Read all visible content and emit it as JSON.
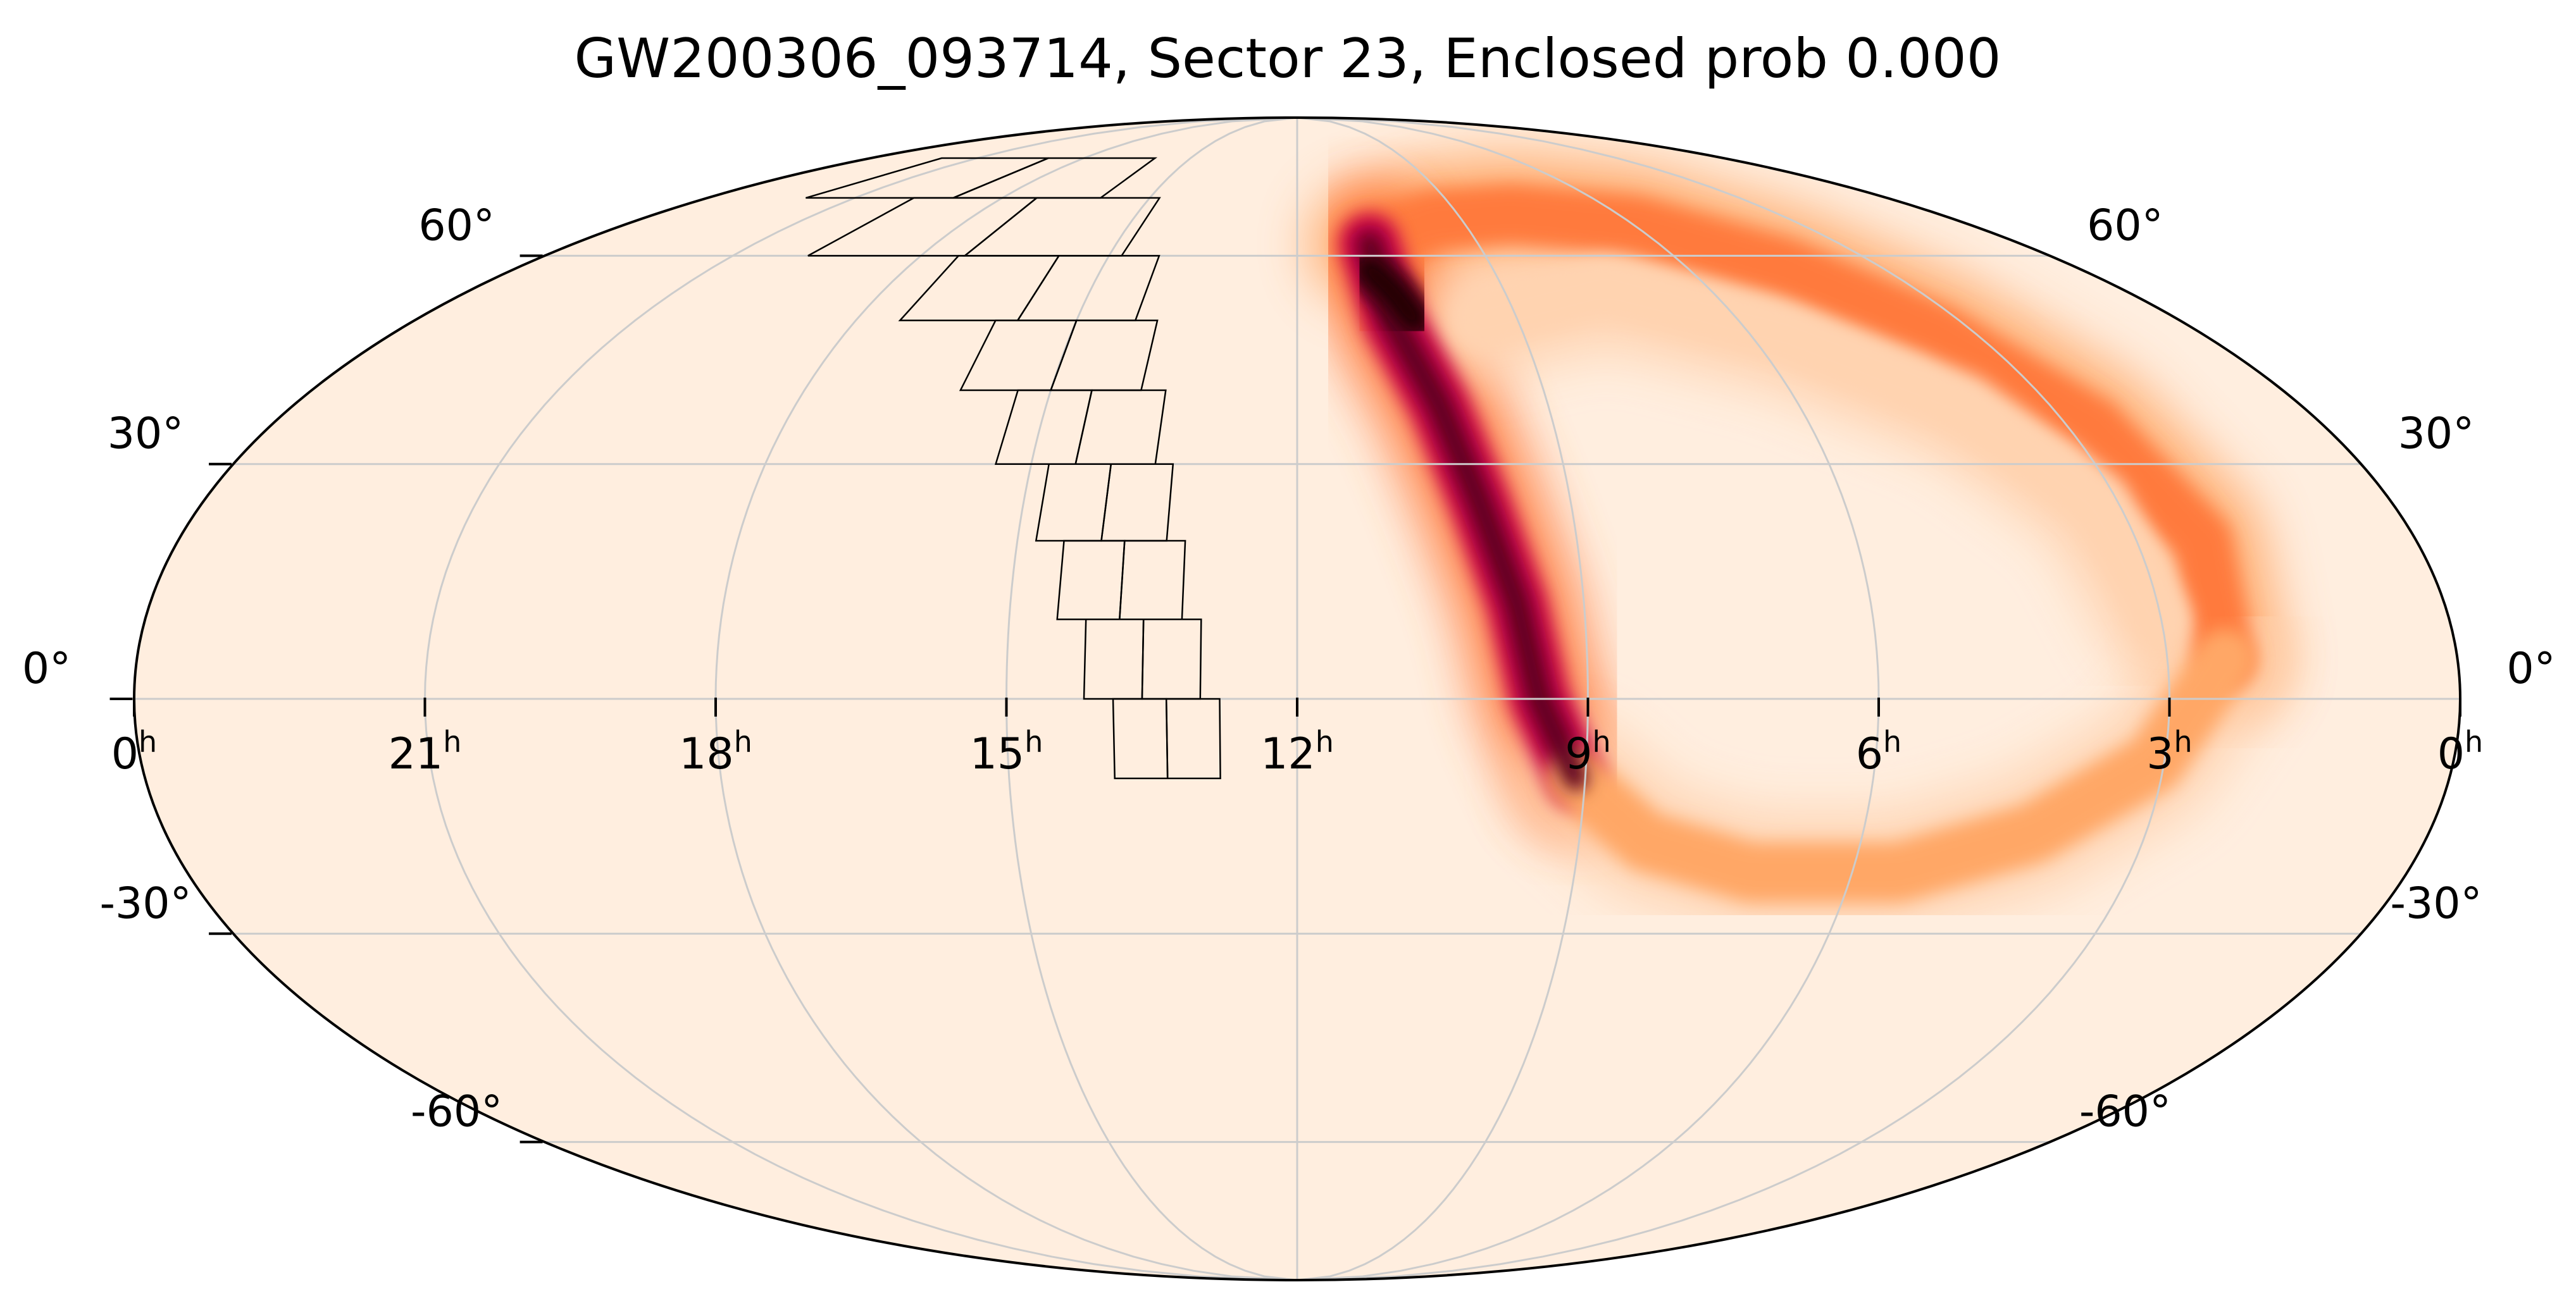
{
  "title": "GW200306_093714, Sector 23, Enclosed prob 0.000",
  "projection": "mollweide",
  "colors": {
    "background": "#ffeedf",
    "outline": "#000000",
    "grid": "#cccccc",
    "footprint": "#000000",
    "prob_colormap": [
      "#ffeedf",
      "#ffd3b0",
      "#ffa766",
      "#ff7a3c",
      "#f0274e",
      "#c8004b",
      "#5c001b",
      "#1c0006"
    ]
  },
  "ra_labels": [
    {
      "text": "0",
      "ra_hours": 24,
      "sup": "h"
    },
    {
      "text": "21",
      "ra_hours": 21,
      "sup": "h"
    },
    {
      "text": "18",
      "ra_hours": 18,
      "sup": "h"
    },
    {
      "text": "15",
      "ra_hours": 15,
      "sup": "h"
    },
    {
      "text": "12",
      "ra_hours": 12,
      "sup": "h"
    },
    {
      "text": "9",
      "ra_hours": 9,
      "sup": "h"
    },
    {
      "text": "6",
      "ra_hours": 6,
      "sup": "h"
    },
    {
      "text": "3",
      "ra_hours": 3,
      "sup": "h"
    },
    {
      "text": "0",
      "ra_hours": 0,
      "sup": "h"
    }
  ],
  "dec_labels_left": [
    {
      "text": "60°",
      "dec": 60
    },
    {
      "text": "30°",
      "dec": 30
    },
    {
      "text": "0°",
      "dec": 0
    },
    {
      "text": "-30°",
      "dec": -30
    },
    {
      "text": "-60°",
      "dec": -60
    }
  ],
  "dec_labels_right": [
    {
      "text": "60°",
      "dec": 60
    },
    {
      "text": "30°",
      "dec": 30
    },
    {
      "text": "0°",
      "dec": 0
    },
    {
      "text": "-30°",
      "dec": -30
    },
    {
      "text": "-60°",
      "dec": -60
    }
  ],
  "probability_band": {
    "description_units": "ra_hours, dec_degrees",
    "segments": [
      {
        "name": "north-arc",
        "prob": 0.55,
        "points": [
          [
            10.8,
            62
          ],
          [
            9.5,
            66
          ],
          [
            8,
            67
          ],
          [
            6,
            65
          ],
          [
            4.5,
            58
          ],
          [
            3.5,
            48
          ],
          [
            2.7,
            35
          ],
          [
            2.3,
            20
          ],
          [
            2.4,
            5
          ]
        ]
      },
      {
        "name": "west-arm",
        "prob": 0.9,
        "points": [
          [
            10.8,
            62
          ],
          [
            10.7,
            50
          ],
          [
            10.3,
            38
          ],
          [
            10,
            25
          ],
          [
            9.7,
            12
          ],
          [
            9.5,
            0
          ],
          [
            9.1,
            -10
          ]
        ]
      },
      {
        "name": "south-arc",
        "prob": 0.35,
        "points": [
          [
            9.1,
            -10
          ],
          [
            8.3,
            -18
          ],
          [
            7.1,
            -22
          ],
          [
            5.5,
            -22
          ],
          [
            4.2,
            -17
          ],
          [
            3.1,
            -8
          ],
          [
            2.4,
            5
          ]
        ]
      },
      {
        "name": "inner-haze",
        "prob": 0.15,
        "points": [
          [
            9.5,
            50
          ],
          [
            7.5,
            55
          ],
          [
            5.5,
            48
          ],
          [
            4,
            38
          ],
          [
            3.2,
            25
          ],
          [
            3,
            10
          ]
        ]
      },
      {
        "name": "peak",
        "prob": 1.0,
        "points": [
          [
            10.9,
            58
          ],
          [
            10.6,
            54
          ],
          [
            10.4,
            50
          ]
        ]
      }
    ]
  },
  "tess_footprint": {
    "sector": 23,
    "rows": [
      {
        "dec_lo": -10,
        "dec_hi": 0
      },
      {
        "dec_lo": 0,
        "dec_hi": 10
      },
      {
        "dec_lo": 10,
        "dec_hi": 20
      },
      {
        "dec_lo": 20,
        "dec_hi": 30
      },
      {
        "dec_lo": 30,
        "dec_hi": 40
      },
      {
        "dec_lo": 40,
        "dec_hi": 50
      },
      {
        "dec_lo": 50,
        "dec_hi": 60
      },
      {
        "dec_lo": 60,
        "dec_hi": 70
      },
      {
        "dec_lo": 70,
        "dec_hi": 78
      }
    ],
    "columns_ra_hours": [
      {
        "ra_east": 12.8,
        "ra_mid": 13.35,
        "ra_west": 13.9
      },
      {
        "ra_east": 13.0,
        "ra_mid": 13.6,
        "ra_west": 14.2
      },
      {
        "ra_east": 13.2,
        "ra_mid": 13.85,
        "ra_west": 14.5
      },
      {
        "ra_east": 13.4,
        "ra_mid": 14.1,
        "ra_west": 14.8
      },
      {
        "ra_east": 13.6,
        "ra_mid": 14.5,
        "ra_west": 15.4
      },
      {
        "ra_east": 13.9,
        "ra_mid": 15.0,
        "ra_west": 16.1
      },
      {
        "ra_east": 14.2,
        "ra_mid": 15.8,
        "ra_west": 17.4
      },
      {
        "ra_east": 14.8,
        "ra_mid": 17.3,
        "ra_west": 19.8
      },
      {
        "ra_east": 16.0,
        "ra_mid": 19.0,
        "ra_west": 22.0
      }
    ]
  }
}
